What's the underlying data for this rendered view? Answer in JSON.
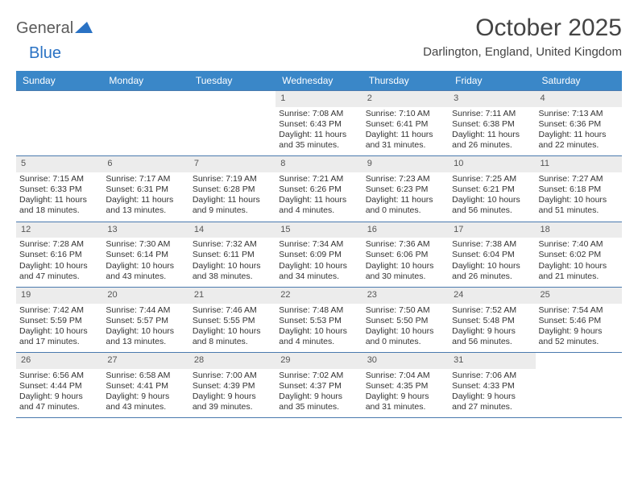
{
  "logo": {
    "word1": "General",
    "word2": "Blue"
  },
  "title": "October 2025",
  "location": "Darlington, England, United Kingdom",
  "accent_color": "#3a87c8",
  "row_divider_color": "#4a7aae",
  "daynum_bg": "#ececec",
  "days_of_week": [
    "Sunday",
    "Monday",
    "Tuesday",
    "Wednesday",
    "Thursday",
    "Friday",
    "Saturday"
  ],
  "weeks": [
    [
      {
        "n": "",
        "sr": "",
        "ss": "",
        "dl1": "",
        "dl2": ""
      },
      {
        "n": "",
        "sr": "",
        "ss": "",
        "dl1": "",
        "dl2": ""
      },
      {
        "n": "",
        "sr": "",
        "ss": "",
        "dl1": "",
        "dl2": ""
      },
      {
        "n": "1",
        "sr": "Sunrise: 7:08 AM",
        "ss": "Sunset: 6:43 PM",
        "dl1": "Daylight: 11 hours",
        "dl2": "and 35 minutes."
      },
      {
        "n": "2",
        "sr": "Sunrise: 7:10 AM",
        "ss": "Sunset: 6:41 PM",
        "dl1": "Daylight: 11 hours",
        "dl2": "and 31 minutes."
      },
      {
        "n": "3",
        "sr": "Sunrise: 7:11 AM",
        "ss": "Sunset: 6:38 PM",
        "dl1": "Daylight: 11 hours",
        "dl2": "and 26 minutes."
      },
      {
        "n": "4",
        "sr": "Sunrise: 7:13 AM",
        "ss": "Sunset: 6:36 PM",
        "dl1": "Daylight: 11 hours",
        "dl2": "and 22 minutes."
      }
    ],
    [
      {
        "n": "5",
        "sr": "Sunrise: 7:15 AM",
        "ss": "Sunset: 6:33 PM",
        "dl1": "Daylight: 11 hours",
        "dl2": "and 18 minutes."
      },
      {
        "n": "6",
        "sr": "Sunrise: 7:17 AM",
        "ss": "Sunset: 6:31 PM",
        "dl1": "Daylight: 11 hours",
        "dl2": "and 13 minutes."
      },
      {
        "n": "7",
        "sr": "Sunrise: 7:19 AM",
        "ss": "Sunset: 6:28 PM",
        "dl1": "Daylight: 11 hours",
        "dl2": "and 9 minutes."
      },
      {
        "n": "8",
        "sr": "Sunrise: 7:21 AM",
        "ss": "Sunset: 6:26 PM",
        "dl1": "Daylight: 11 hours",
        "dl2": "and 4 minutes."
      },
      {
        "n": "9",
        "sr": "Sunrise: 7:23 AM",
        "ss": "Sunset: 6:23 PM",
        "dl1": "Daylight: 11 hours",
        "dl2": "and 0 minutes."
      },
      {
        "n": "10",
        "sr": "Sunrise: 7:25 AM",
        "ss": "Sunset: 6:21 PM",
        "dl1": "Daylight: 10 hours",
        "dl2": "and 56 minutes."
      },
      {
        "n": "11",
        "sr": "Sunrise: 7:27 AM",
        "ss": "Sunset: 6:18 PM",
        "dl1": "Daylight: 10 hours",
        "dl2": "and 51 minutes."
      }
    ],
    [
      {
        "n": "12",
        "sr": "Sunrise: 7:28 AM",
        "ss": "Sunset: 6:16 PM",
        "dl1": "Daylight: 10 hours",
        "dl2": "and 47 minutes."
      },
      {
        "n": "13",
        "sr": "Sunrise: 7:30 AM",
        "ss": "Sunset: 6:14 PM",
        "dl1": "Daylight: 10 hours",
        "dl2": "and 43 minutes."
      },
      {
        "n": "14",
        "sr": "Sunrise: 7:32 AM",
        "ss": "Sunset: 6:11 PM",
        "dl1": "Daylight: 10 hours",
        "dl2": "and 38 minutes."
      },
      {
        "n": "15",
        "sr": "Sunrise: 7:34 AM",
        "ss": "Sunset: 6:09 PM",
        "dl1": "Daylight: 10 hours",
        "dl2": "and 34 minutes."
      },
      {
        "n": "16",
        "sr": "Sunrise: 7:36 AM",
        "ss": "Sunset: 6:06 PM",
        "dl1": "Daylight: 10 hours",
        "dl2": "and 30 minutes."
      },
      {
        "n": "17",
        "sr": "Sunrise: 7:38 AM",
        "ss": "Sunset: 6:04 PM",
        "dl1": "Daylight: 10 hours",
        "dl2": "and 26 minutes."
      },
      {
        "n": "18",
        "sr": "Sunrise: 7:40 AM",
        "ss": "Sunset: 6:02 PM",
        "dl1": "Daylight: 10 hours",
        "dl2": "and 21 minutes."
      }
    ],
    [
      {
        "n": "19",
        "sr": "Sunrise: 7:42 AM",
        "ss": "Sunset: 5:59 PM",
        "dl1": "Daylight: 10 hours",
        "dl2": "and 17 minutes."
      },
      {
        "n": "20",
        "sr": "Sunrise: 7:44 AM",
        "ss": "Sunset: 5:57 PM",
        "dl1": "Daylight: 10 hours",
        "dl2": "and 13 minutes."
      },
      {
        "n": "21",
        "sr": "Sunrise: 7:46 AM",
        "ss": "Sunset: 5:55 PM",
        "dl1": "Daylight: 10 hours",
        "dl2": "and 8 minutes."
      },
      {
        "n": "22",
        "sr": "Sunrise: 7:48 AM",
        "ss": "Sunset: 5:53 PM",
        "dl1": "Daylight: 10 hours",
        "dl2": "and 4 minutes."
      },
      {
        "n": "23",
        "sr": "Sunrise: 7:50 AM",
        "ss": "Sunset: 5:50 PM",
        "dl1": "Daylight: 10 hours",
        "dl2": "and 0 minutes."
      },
      {
        "n": "24",
        "sr": "Sunrise: 7:52 AM",
        "ss": "Sunset: 5:48 PM",
        "dl1": "Daylight: 9 hours",
        "dl2": "and 56 minutes."
      },
      {
        "n": "25",
        "sr": "Sunrise: 7:54 AM",
        "ss": "Sunset: 5:46 PM",
        "dl1": "Daylight: 9 hours",
        "dl2": "and 52 minutes."
      }
    ],
    [
      {
        "n": "26",
        "sr": "Sunrise: 6:56 AM",
        "ss": "Sunset: 4:44 PM",
        "dl1": "Daylight: 9 hours",
        "dl2": "and 47 minutes."
      },
      {
        "n": "27",
        "sr": "Sunrise: 6:58 AM",
        "ss": "Sunset: 4:41 PM",
        "dl1": "Daylight: 9 hours",
        "dl2": "and 43 minutes."
      },
      {
        "n": "28",
        "sr": "Sunrise: 7:00 AM",
        "ss": "Sunset: 4:39 PM",
        "dl1": "Daylight: 9 hours",
        "dl2": "and 39 minutes."
      },
      {
        "n": "29",
        "sr": "Sunrise: 7:02 AM",
        "ss": "Sunset: 4:37 PM",
        "dl1": "Daylight: 9 hours",
        "dl2": "and 35 minutes."
      },
      {
        "n": "30",
        "sr": "Sunrise: 7:04 AM",
        "ss": "Sunset: 4:35 PM",
        "dl1": "Daylight: 9 hours",
        "dl2": "and 31 minutes."
      },
      {
        "n": "31",
        "sr": "Sunrise: 7:06 AM",
        "ss": "Sunset: 4:33 PM",
        "dl1": "Daylight: 9 hours",
        "dl2": "and 27 minutes."
      },
      {
        "n": "",
        "sr": "",
        "ss": "",
        "dl1": "",
        "dl2": ""
      }
    ]
  ]
}
